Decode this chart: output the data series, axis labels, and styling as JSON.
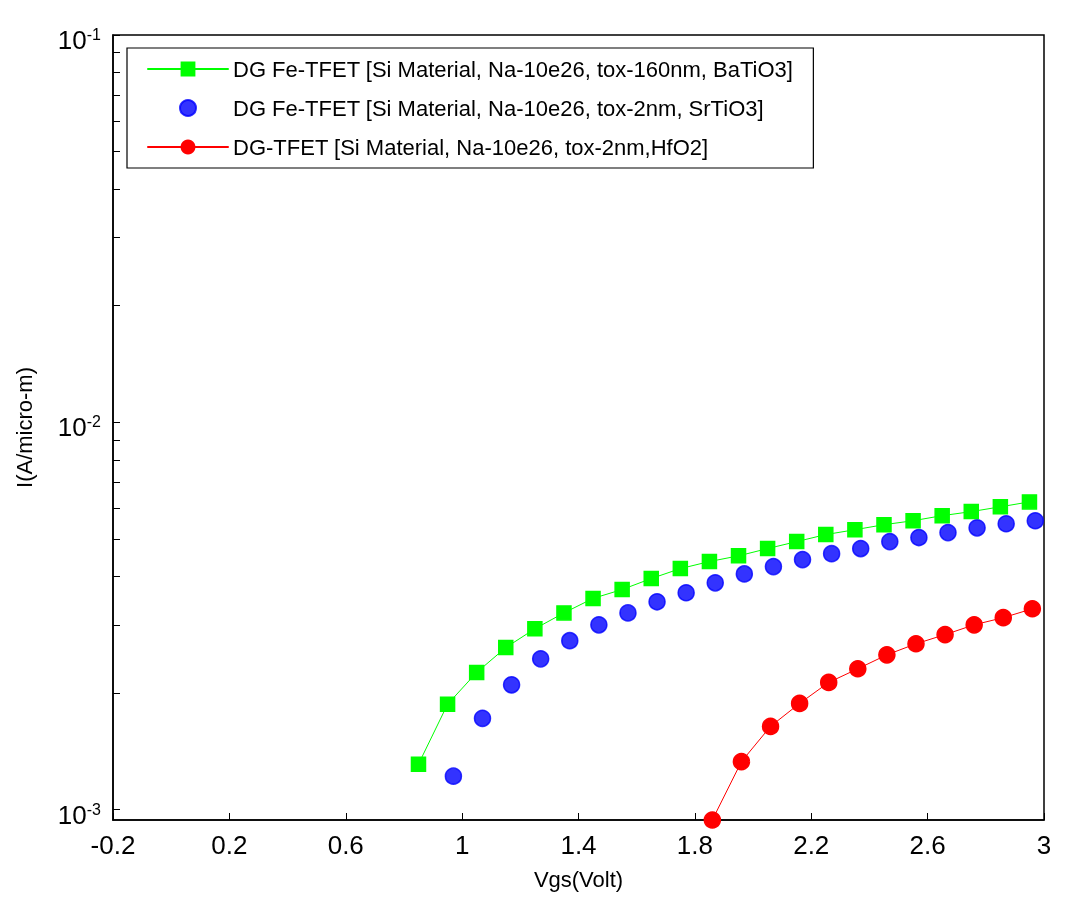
{
  "chart_data": {
    "type": "line",
    "xlabel": "Vgs(Volt)",
    "ylabel": "I(A/micro-m)",
    "xlim": [
      -0.2,
      3
    ],
    "xticks": [
      -0.2,
      0.2,
      0.6,
      1,
      1.4,
      1.8,
      2.2,
      2.6,
      3
    ],
    "ylim": [
      0.00094,
      0.1
    ],
    "log": "y",
    "yticks": [
      {
        "value": 0.001,
        "label": "10$^{-3}$"
      },
      {
        "value": 0.002,
        "label": null
      },
      {
        "value": 0.003,
        "label": null
      },
      {
        "value": 0.004,
        "label": null
      },
      {
        "value": 0.005,
        "label": null
      },
      {
        "value": 0.006,
        "label": null
      },
      {
        "value": 0.007,
        "label": null
      },
      {
        "value": 0.008,
        "label": null
      },
      {
        "value": 0.009,
        "label": null
      },
      {
        "value": 0.01,
        "label": "10$^{-2}$"
      },
      {
        "value": 0.02,
        "label": null
      },
      {
        "value": 0.03,
        "label": null
      },
      {
        "value": 0.04,
        "label": null
      },
      {
        "value": 0.05,
        "label": null
      },
      {
        "value": 0.06,
        "label": null
      },
      {
        "value": 0.07,
        "label": null
      },
      {
        "value": 0.08,
        "label": null
      },
      {
        "value": 0.09,
        "label": null
      },
      {
        "value": 0.1,
        "label": "10$^{-1}$"
      }
    ],
    "grid": false,
    "legend": "top left",
    "series": [
      {
        "name": "DG Fe-TFET [Si Material, Na-10e26, tox-160nm, BaTiO3]",
        "marker": "square",
        "color": "#00ff00",
        "x": [
          0.85,
          0.95,
          1.05,
          1.15,
          1.25,
          1.35,
          1.45,
          1.55,
          1.65,
          1.75,
          1.85,
          1.95,
          2.05,
          2.15,
          2.25,
          2.35,
          2.45,
          2.55,
          2.65,
          2.75,
          2.85,
          2.95
        ],
        "values": [
          0.00131,
          0.00187,
          0.00226,
          0.00262,
          0.00293,
          0.00322,
          0.00351,
          0.0037,
          0.00395,
          0.00419,
          0.00437,
          0.00452,
          0.00472,
          0.00492,
          0.00513,
          0.00528,
          0.00544,
          0.00557,
          0.00574,
          0.00588,
          0.00605,
          0.00623
        ]
      },
      {
        "name": "DG Fe-TFET [Si Material, Na-10e26, tox-2nm, SrTiO3]",
        "type": "scatter",
        "marker": "circle",
        "color": "#0000ff",
        "x": [
          0.97,
          1.07,
          1.17,
          1.27,
          1.37,
          1.47,
          1.57,
          1.67,
          1.77,
          1.87,
          1.97,
          2.07,
          2.17,
          2.27,
          2.37,
          2.47,
          2.57,
          2.67,
          2.77,
          2.87,
          2.97
        ],
        "values": [
          0.00122,
          0.00172,
          0.0021,
          0.00245,
          0.00273,
          0.003,
          0.00322,
          0.00344,
          0.00363,
          0.00385,
          0.00406,
          0.00424,
          0.00442,
          0.00458,
          0.00472,
          0.00492,
          0.00504,
          0.00519,
          0.00534,
          0.00547,
          0.00557
        ]
      },
      {
        "name": "DG-TFET [Si Material, Na-10e26, tox-2nm,HfO2]",
        "marker": "circle",
        "color": "#ff0000",
        "x": [
          1.86,
          1.96,
          2.06,
          2.16,
          2.26,
          2.36,
          2.46,
          2.56,
          2.66,
          2.76,
          2.86,
          2.96
        ],
        "values": [
          0.00094,
          0.00133,
          0.00164,
          0.00188,
          0.00213,
          0.00231,
          0.00251,
          0.00268,
          0.00283,
          0.003,
          0.00313,
          0.0033
        ]
      }
    ]
  }
}
